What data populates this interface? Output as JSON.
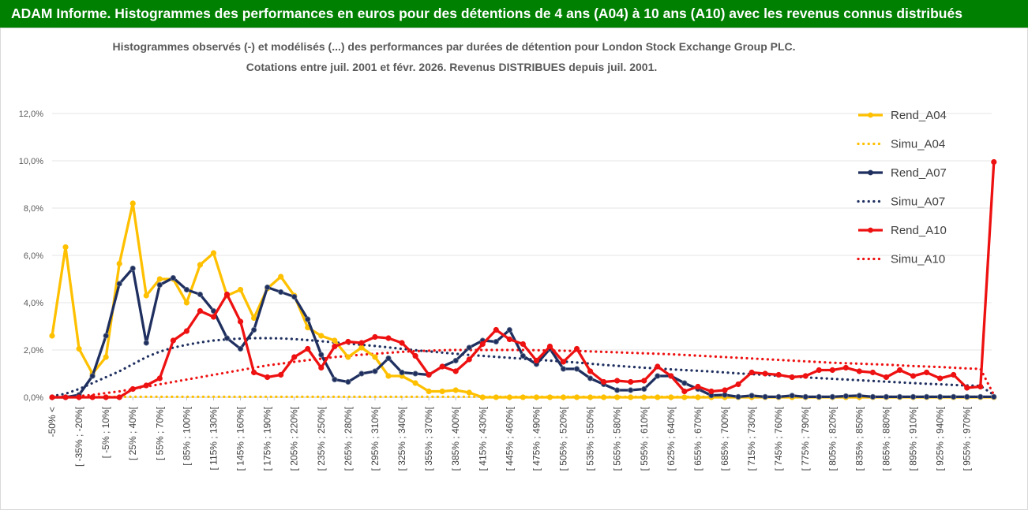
{
  "banner": {
    "title": "ADAM Informe. Histogrammes des performances en euros pour des détentions de 4 ans (A04) à 10 ans (A10) avec les revenus connus distribués"
  },
  "colors": {
    "banner_bg": "#008000",
    "A04": "#ffc000",
    "A07": "#1f2f5f",
    "A10": "#ee1111"
  },
  "chart_data": {
    "type": "line",
    "title_lines": [
      "Histogrammes observés (-) et modélisés (...) des performances par durées de détention pour London Stock Exchange Group PLC.",
      "Cotations entre juil. 2001 et févr. 2026. Revenus DISTRIBUES depuis juil. 2001."
    ],
    "ylim": [
      0,
      12
    ],
    "yticks": [
      "0,0%",
      "2,0%",
      "4,0%",
      "6,0%",
      "8,0%",
      "10,0%",
      "12,0%"
    ],
    "xtick_labels": [
      "-50% <",
      "[ -35% ; -20%[",
      "[ -5% ; 10%[",
      "[ 25% ; 40%[",
      "[ 55% ; 70%[",
      "[ 85% ; 100%[",
      "[ 115% ; 130%[",
      "[ 145% ; 160%[",
      "[ 175% ; 190%[",
      "[ 205% ; 220%[",
      "[ 235% ; 250%[",
      "[ 265% ; 280%[",
      "[ 295% ; 310%[",
      "[ 325% ; 340%[",
      "[ 355% ; 370%[",
      "[ 385% ; 400%[",
      "[ 415% ; 430%[",
      "[ 445% ; 460%[",
      "[ 475% ; 490%[",
      "[ 505% ; 520%[",
      "[ 535% ; 550%[",
      "[ 565% ; 580%[",
      "[ 595% ; 610%[",
      "[ 625% ; 640%[",
      "[ 655% ; 670%[",
      "[ 685% ; 700%[",
      "[ 715% ; 730%[",
      "[ 745% ; 760%[",
      "[ 775% ; 790%[",
      "[ 805% ; 820%[",
      "[ 835% ; 850%[",
      "[ 865% ; 880%[",
      "[ 895% ; 910%[",
      "[ 925% ; 940%[",
      "[ 955% ; 970%["
    ],
    "legend_position": "right",
    "series": [
      {
        "name": "Rend_A04",
        "style": "solid",
        "color": "#ffc000",
        "values": [
          2.6,
          6.35,
          2.05,
          1.0,
          1.7,
          5.65,
          8.2,
          4.3,
          5.0,
          5.0,
          4.0,
          5.6,
          6.1,
          4.3,
          4.55,
          3.35,
          4.6,
          5.1,
          4.3,
          2.95,
          2.6,
          2.4,
          1.7,
          2.1,
          1.7,
          0.9,
          0.9,
          0.6,
          0.25,
          0.25,
          0.3,
          0.2,
          0,
          0,
          0,
          0,
          0,
          0,
          0,
          0,
          0,
          0,
          0,
          0,
          0,
          0,
          0,
          0,
          0,
          0,
          0,
          0,
          0,
          0,
          0,
          0,
          0,
          0,
          0,
          0,
          0,
          0,
          0,
          0,
          0,
          0,
          0,
          0,
          0,
          0,
          0
        ]
      },
      {
        "name": "Simu_A04",
        "style": "dotted",
        "color": "#ffc000",
        "values": [
          0,
          0,
          0.02,
          0.02,
          0.02,
          0.02,
          0.02,
          0.02,
          0.02,
          0.02,
          0.02,
          0.02,
          0.02,
          0.02,
          0.02,
          0.02,
          0.02,
          0.02,
          0.02,
          0.02,
          0.02,
          0.02,
          0.02,
          0.02,
          0.02,
          0.02,
          0.02,
          0.02,
          0.02,
          0.02,
          0.02,
          0.02,
          0.02,
          0.02,
          0.02,
          0.02,
          0.02,
          0.02,
          0.02,
          0.02,
          0.02,
          0.02,
          0.02,
          0.02,
          0.02,
          0.02,
          0.02,
          0.02,
          0.02,
          0.02,
          0.02,
          0.02,
          0.02,
          0.02,
          0.02,
          0.02,
          0.02,
          0.02,
          0.02,
          0.02,
          0.02,
          0.02,
          0.02,
          0.02,
          0.02,
          0.02,
          0.02,
          0.02,
          0.02,
          0.02,
          0
        ]
      },
      {
        "name": "Rend_A07",
        "style": "solid",
        "color": "#1f2f5f",
        "values": [
          0,
          0,
          0.1,
          0.9,
          2.6,
          4.8,
          5.45,
          2.3,
          4.75,
          5.05,
          4.55,
          4.35,
          3.65,
          2.5,
          2.05,
          2.85,
          4.65,
          4.45,
          4.25,
          3.3,
          1.8,
          0.75,
          0.65,
          1.0,
          1.1,
          1.65,
          1.05,
          1.0,
          0.95,
          1.3,
          1.55,
          2.1,
          2.4,
          2.35,
          2.85,
          1.75,
          1.4,
          2.05,
          1.2,
          1.2,
          0.8,
          0.55,
          0.3,
          0.3,
          0.35,
          0.9,
          0.9,
          0.6,
          0.35,
          0.08,
          0.1,
          0.02,
          0.07,
          0.02,
          0.02,
          0.07,
          0.02,
          0.02,
          0.02,
          0.05,
          0.07,
          0.02,
          0.02,
          0.02,
          0.02,
          0.02,
          0.02,
          0.02,
          0.02,
          0.02,
          0.02
        ]
      },
      {
        "name": "Simu_A07",
        "style": "dotted",
        "color": "#1f2f5f",
        "values": [
          0.05,
          0.15,
          0.35,
          0.6,
          0.85,
          1.1,
          1.4,
          1.7,
          1.93,
          2.1,
          2.22,
          2.32,
          2.4,
          2.45,
          2.48,
          2.5,
          2.5,
          2.49,
          2.46,
          2.42,
          2.37,
          2.32,
          2.27,
          2.22,
          2.17,
          2.11,
          2.05,
          1.99,
          1.94,
          1.89,
          1.84,
          1.79,
          1.75,
          1.71,
          1.67,
          1.63,
          1.59,
          1.55,
          1.51,
          1.47,
          1.42,
          1.37,
          1.33,
          1.29,
          1.25,
          1.22,
          1.18,
          1.15,
          1.12,
          1.09,
          1.05,
          1.01,
          0.98,
          0.95,
          0.91,
          0.88,
          0.84,
          0.81,
          0.78,
          0.75,
          0.72,
          0.69,
          0.66,
          0.63,
          0.6,
          0.57,
          0.55,
          0.52,
          0.5,
          0.48,
          0.1
        ]
      },
      {
        "name": "Rend_A10",
        "style": "solid",
        "color": "#ee1111",
        "values": [
          0,
          0,
          0,
          0,
          0,
          0,
          0.35,
          0.5,
          0.8,
          2.4,
          2.8,
          3.65,
          3.4,
          4.35,
          3.2,
          1.05,
          0.85,
          0.95,
          1.7,
          2.05,
          1.25,
          2.15,
          2.35,
          2.3,
          2.55,
          2.5,
          2.3,
          1.75,
          0.95,
          1.3,
          1.1,
          1.6,
          2.25,
          2.85,
          2.45,
          2.25,
          1.55,
          2.15,
          1.5,
          2.05,
          1.1,
          0.65,
          0.7,
          0.65,
          0.7,
          1.3,
          0.9,
          0.25,
          0.45,
          0.25,
          0.3,
          0.55,
          1.05,
          1.0,
          0.95,
          0.85,
          0.9,
          1.15,
          1.15,
          1.25,
          1.1,
          1.05,
          0.85,
          1.15,
          0.9,
          1.05,
          0.8,
          0.95,
          0.4,
          0.45,
          9.95
        ]
      },
      {
        "name": "Simu_A10",
        "style": "dotted",
        "color": "#ee1111",
        "values": [
          0,
          0.02,
          0.05,
          0.1,
          0.18,
          0.25,
          0.35,
          0.45,
          0.55,
          0.65,
          0.75,
          0.85,
          0.95,
          1.05,
          1.15,
          1.25,
          1.35,
          1.42,
          1.5,
          1.57,
          1.63,
          1.7,
          1.75,
          1.8,
          1.84,
          1.88,
          1.92,
          1.95,
          1.97,
          1.99,
          2.0,
          2.0,
          2.0,
          2.0,
          2.0,
          2.0,
          1.99,
          1.98,
          1.97,
          1.96,
          1.94,
          1.92,
          1.9,
          1.88,
          1.86,
          1.84,
          1.82,
          1.79,
          1.76,
          1.73,
          1.7,
          1.67,
          1.64,
          1.61,
          1.58,
          1.55,
          1.52,
          1.49,
          1.46,
          1.44,
          1.42,
          1.4,
          1.38,
          1.35,
          1.32,
          1.3,
          1.28,
          1.25,
          1.22,
          1.2,
          0.1
        ]
      }
    ]
  }
}
